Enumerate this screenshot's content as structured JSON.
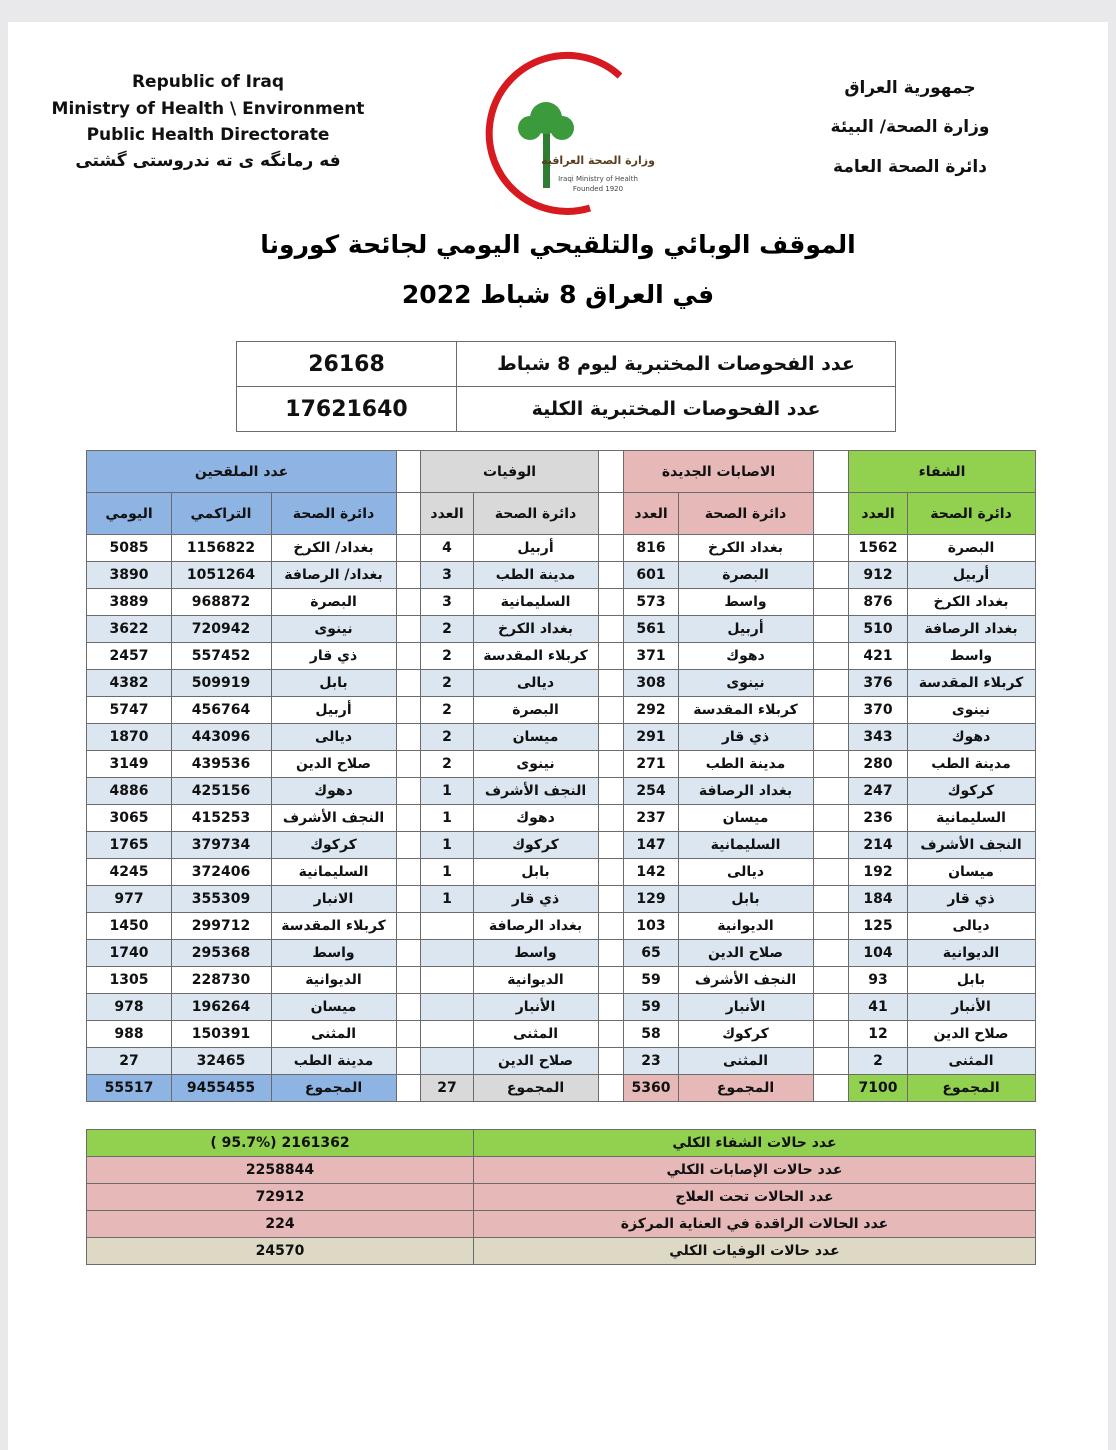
{
  "header": {
    "en": [
      "Republic of Iraq",
      "Ministry of Health \\ Environment",
      "Public Health Directorate",
      "فه رمانگه ی ته ندروستی گشتی"
    ],
    "ar": [
      "جمهورية العراق",
      "وزارة الصحة/ البيئة",
      "دائرة الصحة العامة"
    ]
  },
  "logo": [
    "وزارة الصحة العراقية",
    "Iraqi Ministry of Health",
    "Founded 1920"
  ],
  "title": [
    "الموقف الوبائي والتلقيحي اليومي لجائحة كورونا",
    "في العراق  8  شباط 2022"
  ],
  "tests": [
    [
      "عدد الفحوصات المختبرية  ليوم  8  شباط",
      26168
    ],
    [
      "عدد الفحوصات المختبرية الكلية",
      17621640
    ]
  ],
  "table": {
    "sections": [
      {
        "title": "الشفاء",
        "headers": [
          "دائرة الصحة",
          "العدد"
        ],
        "rows": [
          [
            "البصرة",
            1562
          ],
          [
            "أربيل",
            912
          ],
          [
            "بغداد الكرخ",
            876
          ],
          [
            "بغداد الرصافة",
            510
          ],
          [
            "واسط",
            421
          ],
          [
            "كربلاء المقدسة",
            376
          ],
          [
            "نينوى",
            370
          ],
          [
            "دهوك",
            343
          ],
          [
            "مدينة الطب",
            280
          ],
          [
            "كركوك",
            247
          ],
          [
            "السليمانية",
            236
          ],
          [
            "النجف الأشرف",
            214
          ],
          [
            "ميسان",
            192
          ],
          [
            "ذي قار",
            184
          ],
          [
            "ديالى",
            125
          ],
          [
            "الديوانية",
            104
          ],
          [
            "بابل",
            93
          ],
          [
            "الأنبار",
            41
          ],
          [
            "صلاح الدين",
            12
          ],
          [
            "المثنى",
            2
          ]
        ],
        "total": [
          "المجموع",
          7100
        ]
      },
      {
        "title": "الاصابات الجديدة",
        "headers": [
          "دائرة الصحة",
          "العدد"
        ],
        "rows": [
          [
            "بغداد الكرخ",
            816
          ],
          [
            "البصرة",
            601
          ],
          [
            "واسط",
            573
          ],
          [
            "أربيل",
            561
          ],
          [
            "دهوك",
            371
          ],
          [
            "نينوى",
            308
          ],
          [
            "كربلاء المقدسة",
            292
          ],
          [
            "ذي قار",
            291
          ],
          [
            "مدينة الطب",
            271
          ],
          [
            "بغداد الرصافة",
            254
          ],
          [
            "ميسان",
            237
          ],
          [
            "السليمانية",
            147
          ],
          [
            "ديالى",
            142
          ],
          [
            "بابل",
            129
          ],
          [
            "الديوانية",
            103
          ],
          [
            "صلاح الدين",
            65
          ],
          [
            "النجف الأشرف",
            59
          ],
          [
            "الأنبار",
            59
          ],
          [
            "كركوك",
            58
          ],
          [
            "المثنى",
            23
          ]
        ],
        "total": [
          "المجموع",
          5360
        ]
      },
      {
        "title": "الوفيات",
        "headers": [
          "دائرة الصحة",
          "العدد"
        ],
        "rows": [
          [
            "أربيل",
            4
          ],
          [
            "مدينة الطب",
            3
          ],
          [
            "السليمانية",
            3
          ],
          [
            "بغداد الكرخ",
            2
          ],
          [
            "كربلاء المقدسة",
            2
          ],
          [
            "ديالى",
            2
          ],
          [
            "البصرة",
            2
          ],
          [
            "ميسان",
            2
          ],
          [
            "نينوى",
            2
          ],
          [
            "النجف الأشرف",
            1
          ],
          [
            "دهوك",
            1
          ],
          [
            "كركوك",
            1
          ],
          [
            "بابل",
            1
          ],
          [
            "ذي قار",
            1
          ],
          [
            "بغداد الرصافة",
            null
          ],
          [
            "واسط",
            null
          ],
          [
            "الديوانية",
            null
          ],
          [
            "الأنبار",
            null
          ],
          [
            "المثنى",
            null
          ],
          [
            "صلاح الدين",
            null
          ]
        ],
        "total": [
          "المجموع",
          27
        ]
      },
      {
        "title": "عدد الملقحين",
        "headers": [
          "دائرة الصحة",
          "التراكمي",
          "اليومي"
        ],
        "rows": [
          [
            "بغداد/ الكرخ",
            1156822,
            5085
          ],
          [
            "بغداد/ الرصافة",
            1051264,
            3890
          ],
          [
            "البصرة",
            968872,
            3889
          ],
          [
            "نينوى",
            720942,
            3622
          ],
          [
            "ذي قار",
            557452,
            2457
          ],
          [
            "بابل",
            509919,
            4382
          ],
          [
            "أربيل",
            456764,
            5747
          ],
          [
            "ديالى",
            443096,
            1870
          ],
          [
            "صلاح الدين",
            439536,
            3149
          ],
          [
            "دهوك",
            425156,
            4886
          ],
          [
            "النجف الأشرف",
            415253,
            3065
          ],
          [
            "كركوك",
            379734,
            1765
          ],
          [
            "السليمانية",
            372406,
            4245
          ],
          [
            "الانبار",
            355309,
            977
          ],
          [
            "كربلاء المقدسة",
            299712,
            1450
          ],
          [
            "واسط",
            295368,
            1740
          ],
          [
            "الديوانية",
            228730,
            1305
          ],
          [
            "ميسان",
            196264,
            978
          ],
          [
            "المثنى",
            150391,
            988
          ],
          [
            "مدينة الطب",
            32465,
            27
          ]
        ],
        "total": [
          "المجموع",
          9455455,
          55517
        ]
      }
    ]
  },
  "summary": [
    [
      "عدد حالات الشفاء الكلي",
      "( 95.7%)  2161362"
    ],
    [
      "عدد حالات الإصابات الكلي",
      2258844
    ],
    [
      "عدد الحالات تحت العلاج",
      72912
    ],
    [
      "عدد الحالات الراقدة في العناية المركزة",
      224
    ],
    [
      "عدد حالات الوفيات الكلي",
      24570
    ]
  ]
}
